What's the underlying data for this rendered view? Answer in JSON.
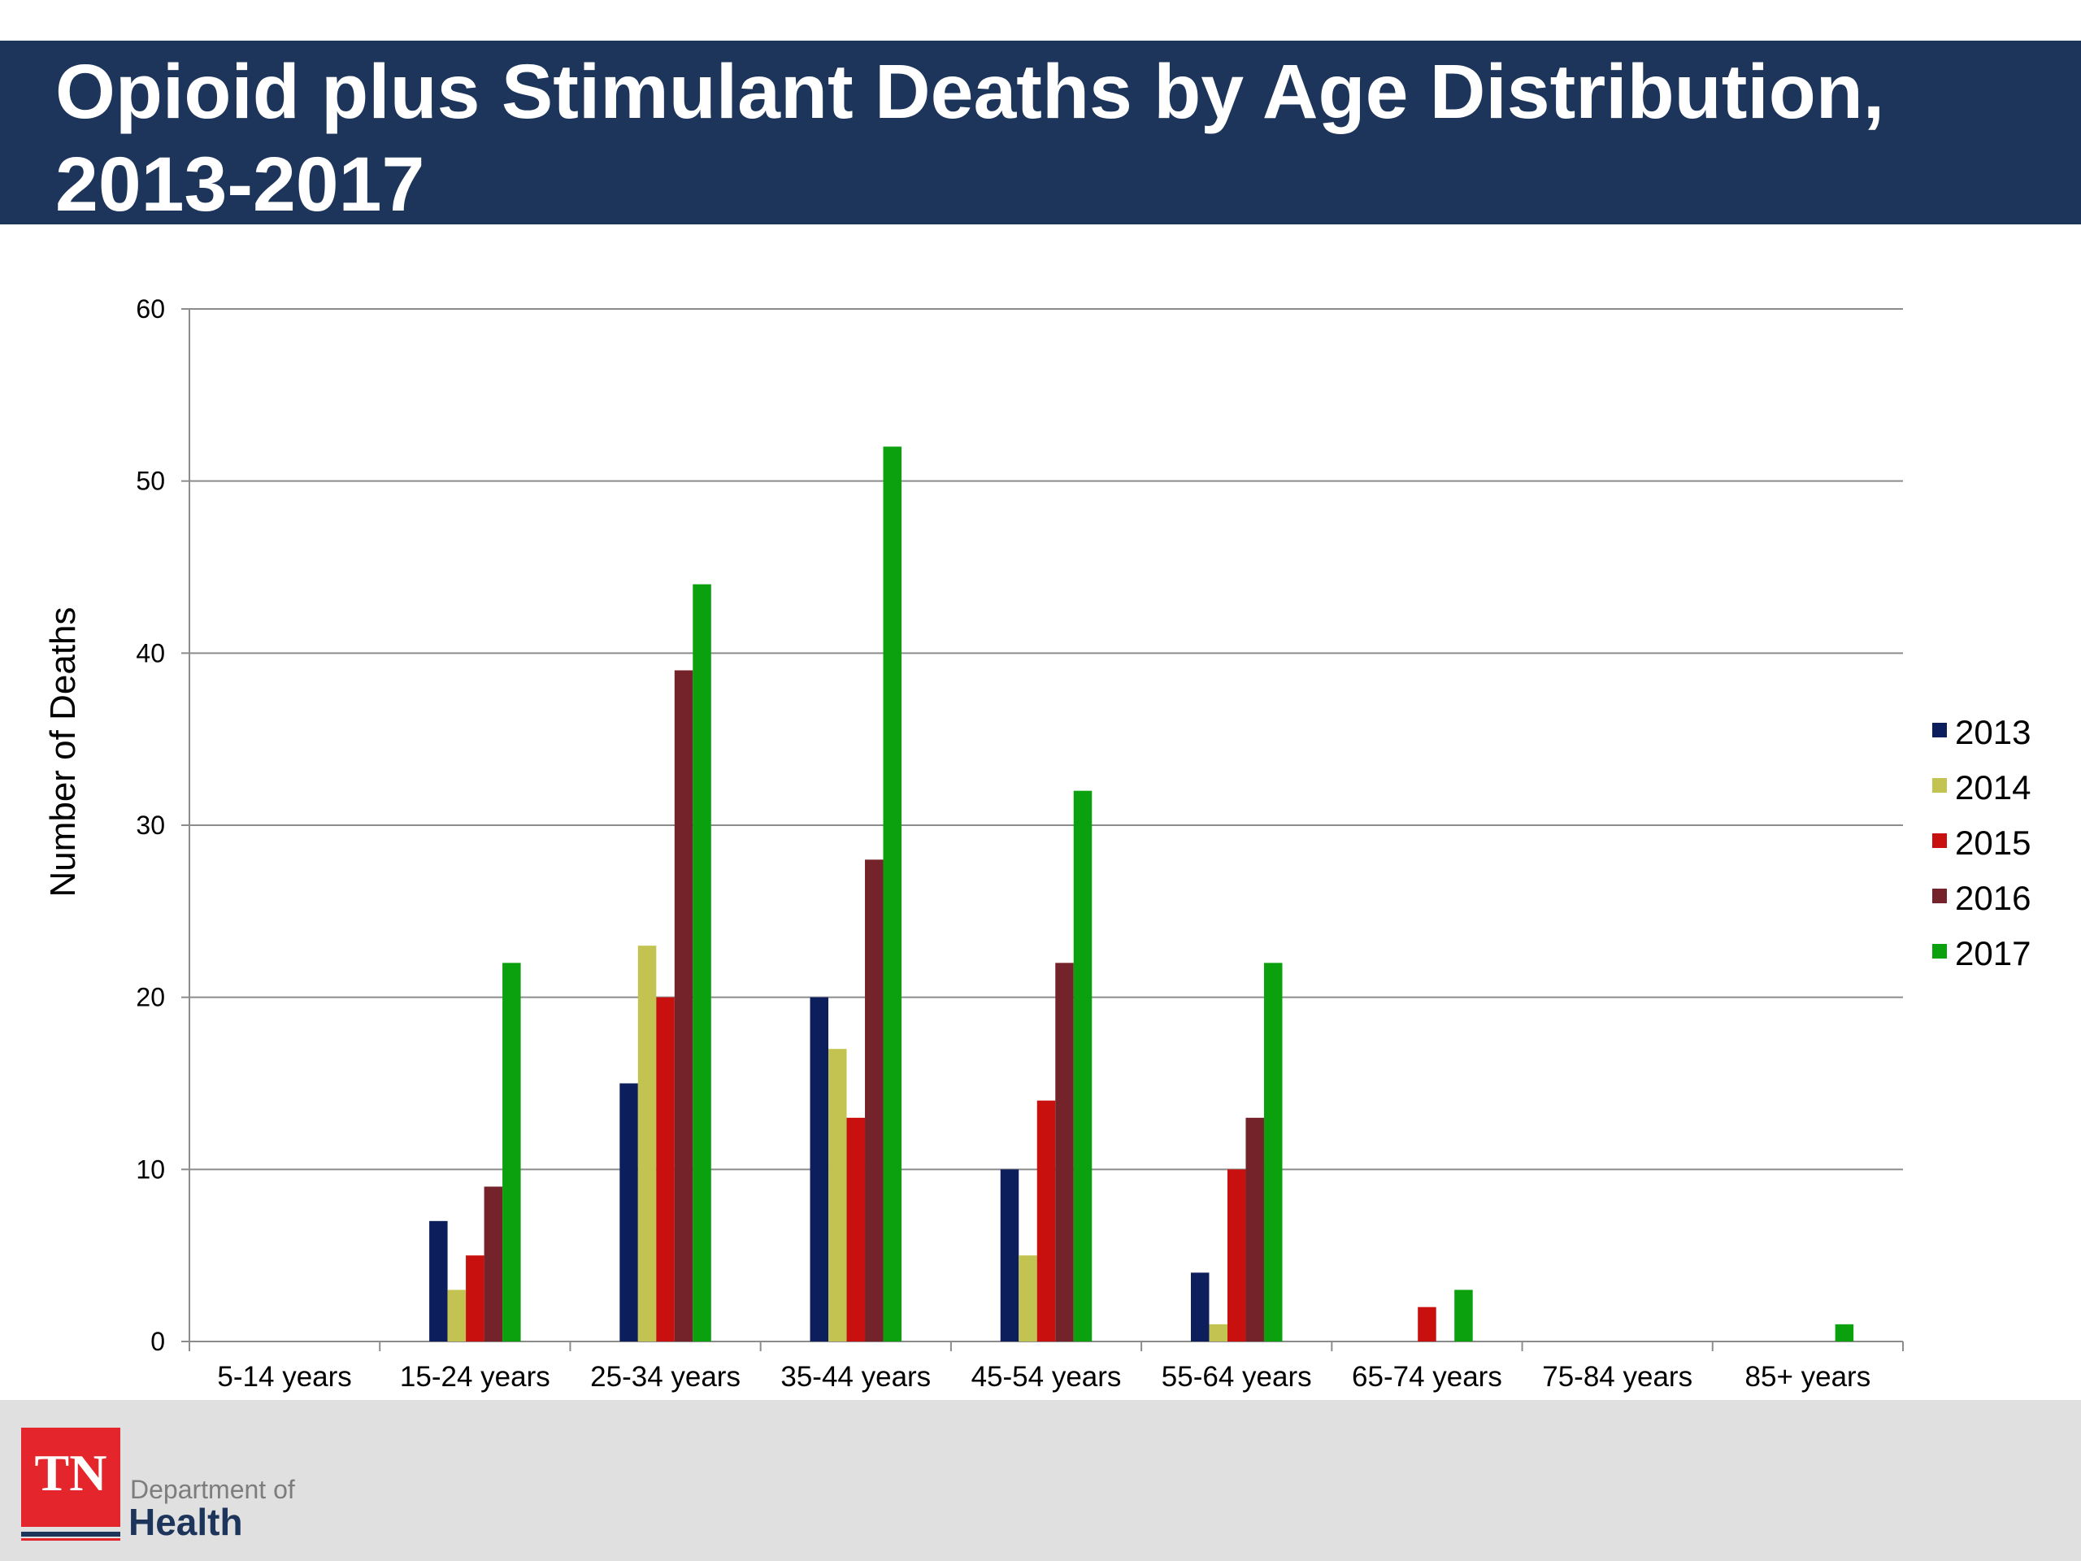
{
  "slide": {
    "title": "Opioid plus Stimulant Deaths by Age Distribution, 2013-2017"
  },
  "chart_data": {
    "type": "bar",
    "title": "",
    "xlabel": "",
    "ylabel": "Number of Deaths",
    "ylim": [
      0,
      60
    ],
    "yticks": [
      0,
      10,
      20,
      30,
      40,
      50,
      60
    ],
    "grid": true,
    "legend_position": "right",
    "categories": [
      "5-14 years",
      "15-24 years",
      "25-34 years",
      "35-44 years",
      "45-54 years",
      "55-64 years",
      "65-74 years",
      "75-84 years",
      "85+ years"
    ],
    "series": [
      {
        "name": "2013",
        "color": "#0c1f5c",
        "values": [
          0,
          7,
          15,
          20,
          10,
          4,
          0,
          0,
          0
        ]
      },
      {
        "name": "2014",
        "color": "#c3c352",
        "values": [
          0,
          3,
          23,
          17,
          5,
          1,
          0,
          0,
          0
        ]
      },
      {
        "name": "2015",
        "color": "#c8110e",
        "values": [
          0,
          5,
          20,
          13,
          14,
          10,
          2,
          0,
          0
        ]
      },
      {
        "name": "2016",
        "color": "#75232a",
        "values": [
          0,
          9,
          39,
          28,
          22,
          13,
          0,
          0,
          0
        ]
      },
      {
        "name": "2017",
        "color": "#0ba00e",
        "values": [
          0,
          22,
          44,
          52,
          32,
          22,
          3,
          0,
          1
        ]
      }
    ]
  },
  "logo": {
    "mark": "TN",
    "line1": "Department of",
    "line2": "Health"
  }
}
